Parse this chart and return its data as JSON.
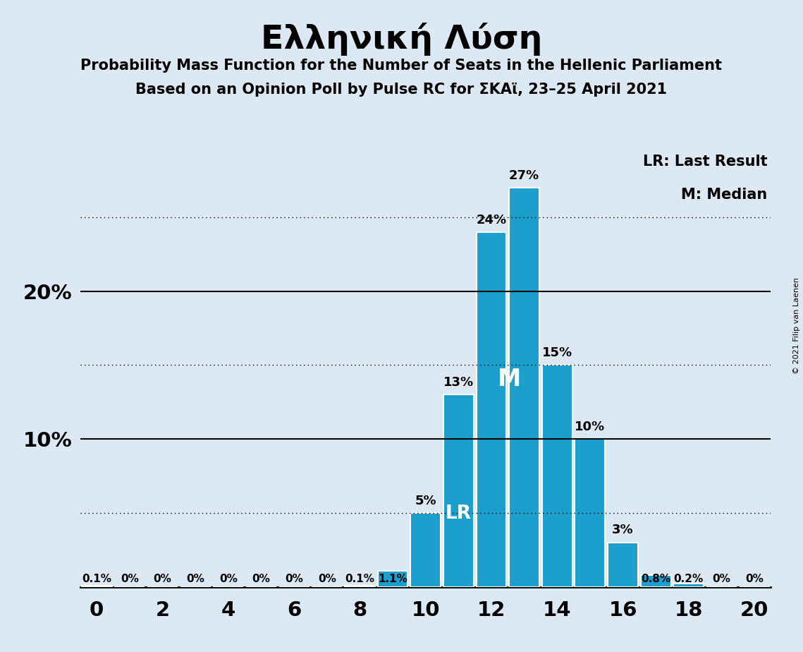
{
  "title": "Ελληνική Λύση",
  "subtitle1": "Probability Mass Function for the Number of Seats in the Hellenic Parliament",
  "subtitle2": "Based on an Opinion Poll by Pulse RC for ΣΚΑϊ, 23–25 April 2021",
  "copyright": "© 2021 Filip van Laenen",
  "seats": [
    0,
    1,
    2,
    3,
    4,
    5,
    6,
    7,
    8,
    9,
    10,
    11,
    12,
    13,
    14,
    15,
    16,
    17,
    18,
    19,
    20
  ],
  "probabilities": [
    0.1,
    0.0,
    0.0,
    0.0,
    0.0,
    0.0,
    0.0,
    0.0,
    0.1,
    1.1,
    5.0,
    13.0,
    24.0,
    27.0,
    15.0,
    10.0,
    3.0,
    0.8,
    0.2,
    0.0,
    0.0
  ],
  "bar_color": "#1c9fcc",
  "background_color": "#dce9f5",
  "lr_seat": 11,
  "median_seat": 13,
  "xlim": [
    -0.5,
    20.5
  ],
  "ylim": [
    0,
    30
  ],
  "xticks": [
    0,
    2,
    4,
    6,
    8,
    10,
    12,
    14,
    16,
    18,
    20
  ],
  "solid_hlines": [
    10,
    20
  ],
  "dotted_hlines": [
    5,
    15,
    25
  ],
  "legend_lr": "LR: Last Result",
  "legend_m": "M: Median",
  "bar_labels": {
    "0": "0.1%",
    "1": "0%",
    "2": "0%",
    "3": "0%",
    "4": "0%",
    "5": "0%",
    "6": "0%",
    "7": "0%",
    "8": "0.1%",
    "9": "1.1%",
    "10": "5%",
    "11": "13%",
    "12": "24%",
    "13": "27%",
    "14": "15%",
    "15": "10%",
    "16": "3%",
    "17": "0.8%",
    "18": "0.2%",
    "19": "0%",
    "20": "0%"
  }
}
